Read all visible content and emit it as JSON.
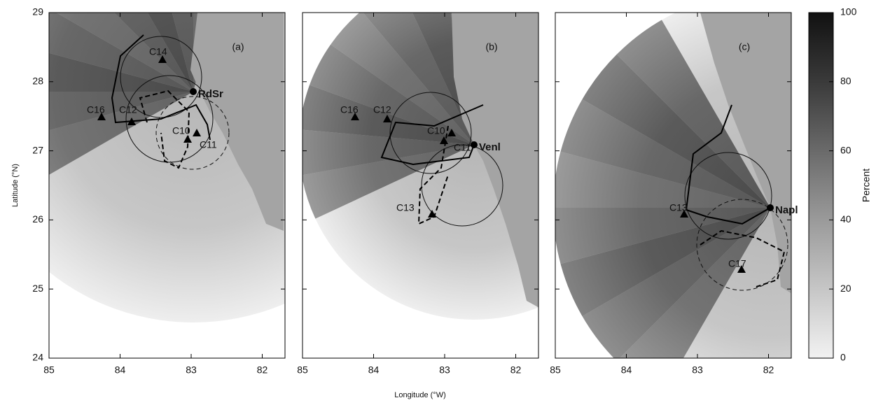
{
  "axes": {
    "y_label": "Latitude (°N)",
    "x_label": "Longitude (°W)",
    "lat_ticks": [
      24,
      25,
      26,
      27,
      28,
      29
    ],
    "lon_ticks": [
      85,
      84,
      83,
      82
    ]
  },
  "panels": [
    {
      "label": "(a)",
      "site": "RdSr",
      "stations": [
        "C14",
        "C16",
        "C12",
        "C10",
        "C11"
      ]
    },
    {
      "label": "(b)",
      "site": "Venl",
      "stations": [
        "C16",
        "C12",
        "C10",
        "C11",
        "C13"
      ]
    },
    {
      "label": "(c)",
      "site": "Napl",
      "stations": [
        "C13",
        "C17"
      ]
    }
  ],
  "colorbar": {
    "label": "Percent",
    "ticks": [
      0,
      20,
      40,
      60,
      80,
      100
    ]
  }
}
